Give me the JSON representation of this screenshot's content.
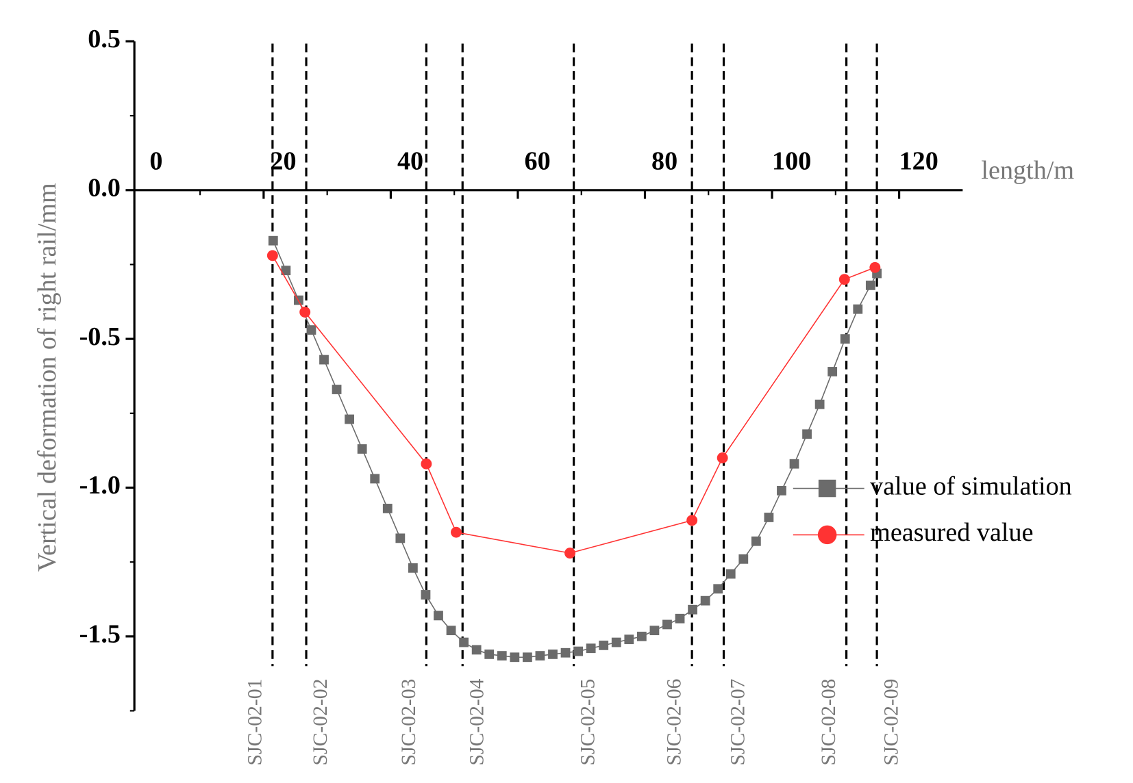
{
  "chart_data": {
    "type": "line",
    "x_label": "length/m",
    "y_label": "Vertical deformation of right rail/mm",
    "xlim": [
      0,
      130
    ],
    "xticks": [
      0,
      20,
      40,
      60,
      80,
      100,
      120
    ],
    "ylim": [
      -1.75,
      0.5
    ],
    "yticks": [
      0.5,
      {
        "value": 0,
        "label": "0.0"
      },
      -0.5,
      {
        "value": -1,
        "label": "-1.0"
      },
      -1.5
    ],
    "series": [
      {
        "name": "value of simulation",
        "color": "#6b6b6b",
        "marker": "square",
        "x": [
          21.5,
          23.5,
          25.5,
          27.5,
          29.5,
          31.5,
          33.5,
          35.5,
          37.5,
          39.5,
          41.5,
          43.5,
          45.5,
          47.5,
          49.5,
          51.5,
          53.5,
          55.5,
          57.5,
          59.5,
          61.5,
          63.5,
          65.5,
          67.5,
          69.5,
          71.5,
          73.5,
          75.5,
          77.5,
          79.5,
          81.5,
          83.5,
          85.5,
          87.5,
          89.5,
          91.5,
          93.5,
          95.5,
          97.5,
          99.5,
          101.5,
          103.5,
          105.5,
          107.5,
          109.5,
          111.5,
          113.5,
          115.5,
          116.5
        ],
        "values": [
          -0.17,
          -0.27,
          -0.37,
          -0.47,
          -0.57,
          -0.67,
          -0.77,
          -0.87,
          -0.97,
          -1.07,
          -1.17,
          -1.27,
          -1.36,
          -1.43,
          -1.48,
          -1.52,
          -1.545,
          -1.56,
          -1.565,
          -1.57,
          -1.57,
          -1.565,
          -1.56,
          -1.555,
          -1.55,
          -1.54,
          -1.53,
          -1.52,
          -1.51,
          -1.5,
          -1.48,
          -1.46,
          -1.44,
          -1.41,
          -1.38,
          -1.34,
          -1.29,
          -1.24,
          -1.18,
          -1.1,
          -1.01,
          -0.92,
          -0.82,
          -0.72,
          -0.61,
          -0.5,
          -0.4,
          -0.32,
          -0.28
        ]
      },
      {
        "name": "measured value",
        "color": "#ff3333",
        "marker": "circle",
        "x": [
          21.4,
          26.5,
          45.6,
          50.3,
          68.2,
          87.4,
          92.2,
          111.4,
          116.2
        ],
        "values": [
          -0.22,
          -0.41,
          -0.92,
          -1.15,
          -1.22,
          -1.11,
          -0.9,
          -0.3,
          -0.26
        ]
      }
    ],
    "reference_lines": [
      {
        "x": 21.4,
        "label": "SJC-02-01"
      },
      {
        "x": 26.7,
        "label": "SJC-02-02"
      },
      {
        "x": 45.6,
        "label": "SJC-02-03"
      },
      {
        "x": 51.3,
        "label": "SJC-02-04"
      },
      {
        "x": 68.8,
        "label": "SJC-02-05"
      },
      {
        "x": 87.4,
        "label": "SJC-02-06"
      },
      {
        "x": 92.4,
        "label": "SJC-02-07"
      },
      {
        "x": 111.7,
        "label": "SJC-02-08"
      },
      {
        "x": 116.5,
        "label": "SJC-02-09"
      }
    ]
  }
}
